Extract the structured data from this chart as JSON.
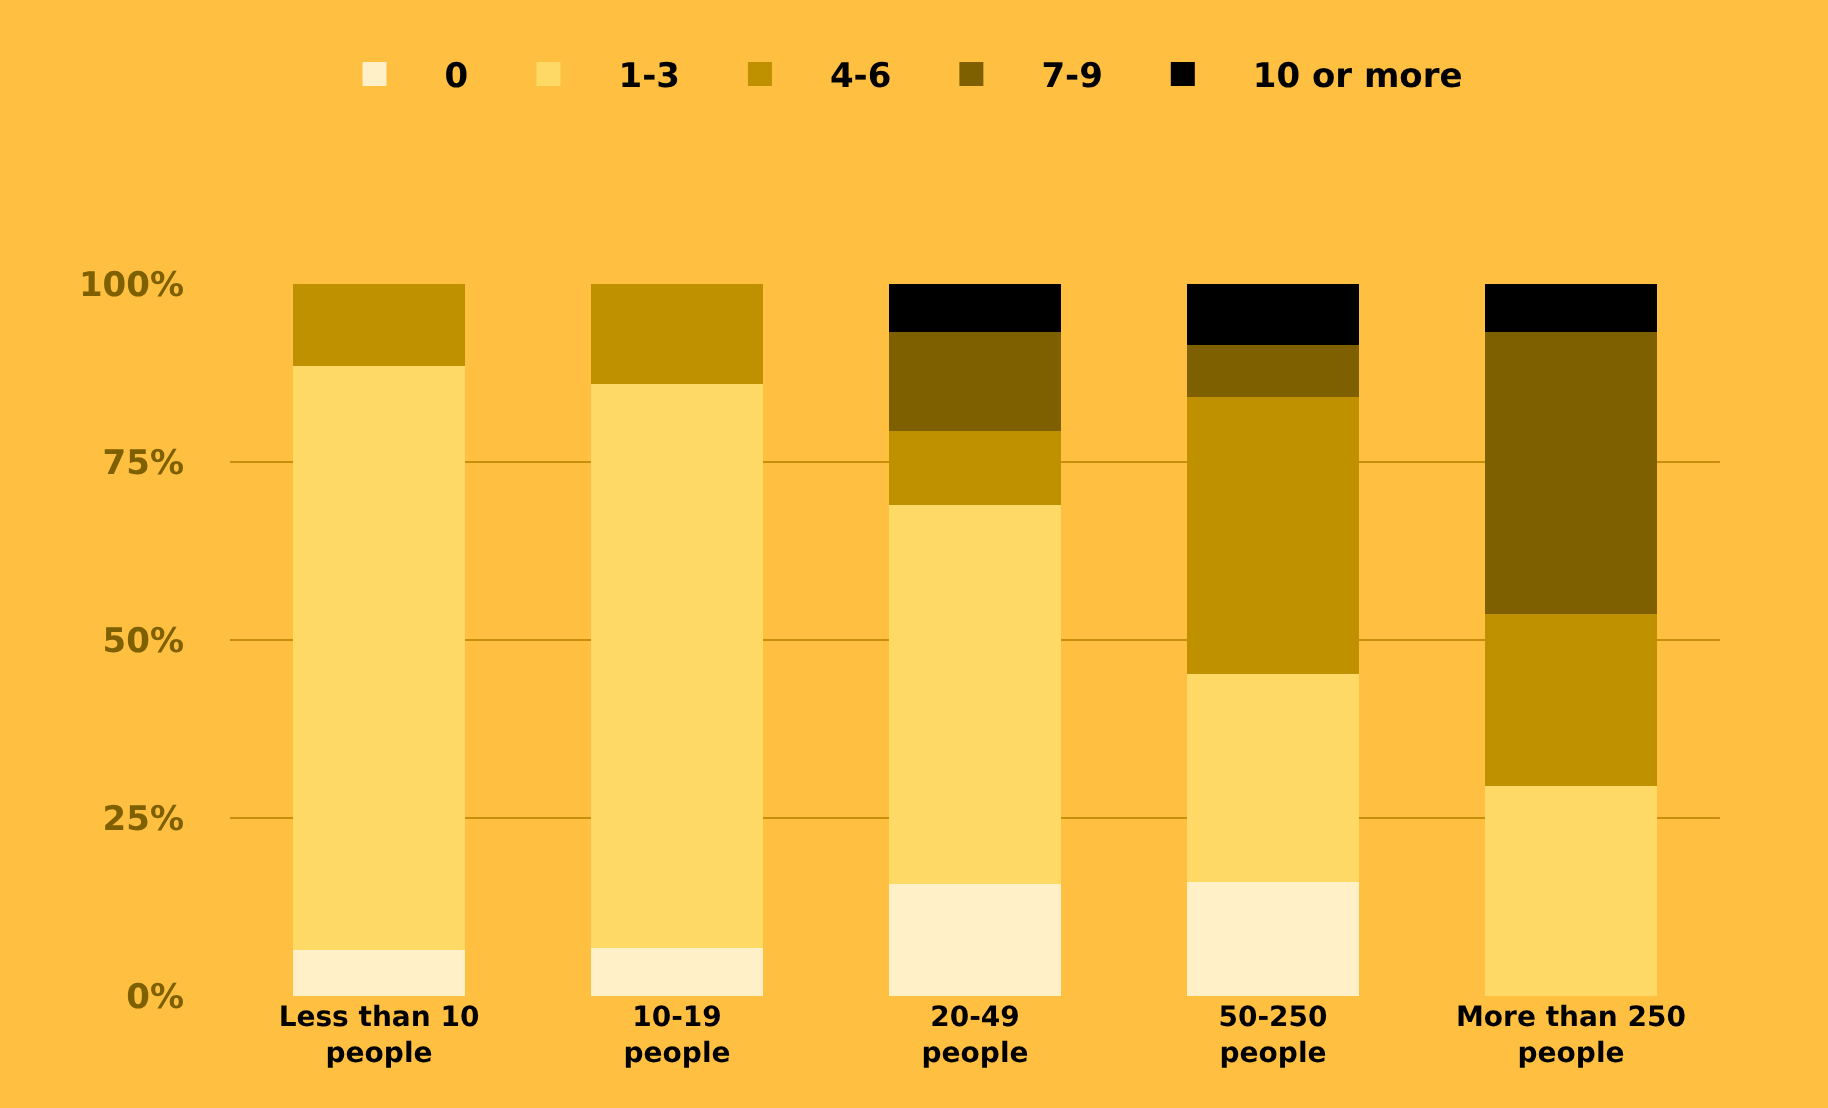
{
  "chart_data": {
    "type": "bar",
    "stacked": true,
    "categories": [
      "Less than 10 people",
      "10-19 people",
      "20-49 people",
      "50-250 people",
      "More than 250 people"
    ],
    "series": [
      {
        "name": "0",
        "color": "#fff0c8",
        "values": [
          6.5,
          6.7,
          15.7,
          16,
          0
        ]
      },
      {
        "name": "1-3",
        "color": "#ffd966",
        "values": [
          82,
          79.2,
          53.2,
          29.2,
          29.5
        ]
      },
      {
        "name": "4-6",
        "color": "#bf9000",
        "values": [
          11.5,
          14.1,
          10.4,
          39,
          24.2
        ]
      },
      {
        "name": "7-9",
        "color": "#7f6000",
        "values": [
          0,
          0,
          14,
          7.3,
          39.6
        ]
      },
      {
        "name": "10 or more",
        "color": "#000000",
        "values": [
          0,
          0,
          6.7,
          8.5,
          6.7
        ]
      }
    ],
    "ylim": [
      0,
      100
    ],
    "yticks": [
      {
        "value": 0,
        "label": "0%"
      },
      {
        "value": 25,
        "label": "25%"
      },
      {
        "value": 50,
        "label": "50%"
      },
      {
        "value": 75,
        "label": "75%"
      },
      {
        "value": 100,
        "label": "100%"
      }
    ],
    "grid": "y",
    "legend": "top left"
  }
}
